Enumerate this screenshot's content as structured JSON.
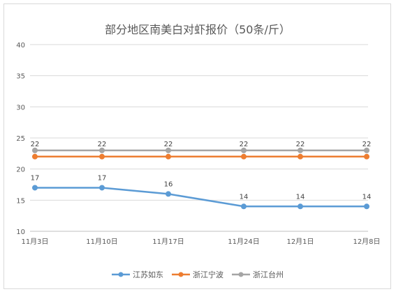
{
  "chart_data": {
    "type": "line",
    "title": "部分地区南美白对虾报价（50条/斤）",
    "xlabel": "",
    "ylabel": "",
    "categories": [
      "11月3日",
      "11月10日",
      "11月17日",
      "11月24日",
      "12月1日",
      "12月8日"
    ],
    "ylim": [
      10,
      40
    ],
    "yticks": [
      10,
      15,
      20,
      25,
      30,
      35,
      40
    ],
    "grid": true,
    "legend": "bottom",
    "series": [
      {
        "name": "江苏如东",
        "color": "#5b9bd5",
        "values": [
          17,
          17,
          16,
          14,
          14,
          14
        ],
        "labels": true
      },
      {
        "name": "浙江宁波",
        "color": "#ed7d31",
        "values": [
          22,
          22,
          22,
          22,
          22,
          22
        ],
        "labels": false
      },
      {
        "name": "浙江台州",
        "color": "#a5a5a5",
        "values": [
          23,
          23,
          23,
          23,
          23,
          23
        ],
        "labels": false
      }
    ],
    "top_labels": [
      "22",
      "22",
      "22",
      "22",
      "22",
      "22"
    ]
  }
}
